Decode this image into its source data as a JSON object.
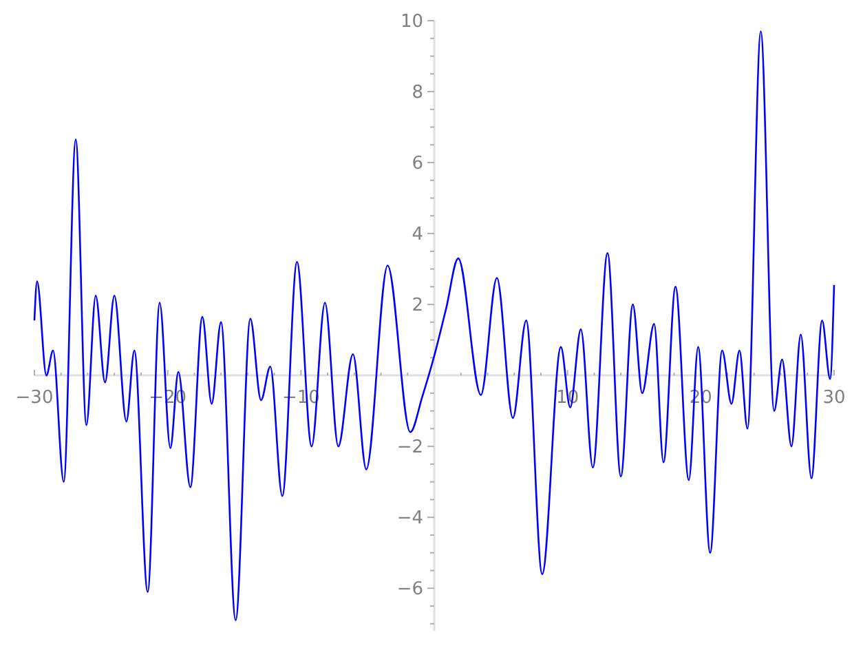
{
  "chart_data": {
    "type": "line",
    "x": [
      -30,
      -29.8,
      -29.1,
      -28.6,
      -27.8,
      -26.9,
      -26.1,
      -25.4,
      -24.7,
      -24.0,
      -23.1,
      -22.5,
      -21.5,
      -20.6,
      -19.8,
      -19.2,
      -18.3,
      -17.4,
      -16.7,
      -16.0,
      -14.9,
      -13.8,
      -13.0,
      -12.3,
      -11.4,
      -10.3,
      -9.2,
      -8.2,
      -7.2,
      -6.1,
      -5.1,
      -3.5,
      -1.8,
      -0.9,
      0,
      0.9,
      1.8,
      3.5,
      4.7,
      5.9,
      6.9,
      8.1,
      9.5,
      10.2,
      11.0,
      11.9,
      13.0,
      14.0,
      14.9,
      15.6,
      16.5,
      17.2,
      18.1,
      19.1,
      19.8,
      20.7,
      21.6,
      22.3,
      22.9,
      23.5,
      24.5,
      25.5,
      26.1,
      26.8,
      27.5,
      28.3,
      29.1,
      29.7,
      30
    ],
    "series": [
      {
        "color": "#0000ff",
        "values": [
          1.55,
          2.65,
          0.0,
          0.7,
          -3.0,
          6.65,
          -1.4,
          2.25,
          -0.2,
          2.25,
          -1.3,
          0.7,
          -6.1,
          2.05,
          -2.05,
          0.1,
          -3.15,
          1.65,
          -0.8,
          1.5,
          -6.9,
          1.6,
          -0.7,
          0.25,
          -3.4,
          3.2,
          -2.0,
          2.05,
          -2.0,
          0.6,
          -2.65,
          3.1,
          -1.6,
          -0.6,
          0.55,
          1.9,
          3.3,
          -0.55,
          2.75,
          -1.2,
          1.55,
          -5.6,
          0.8,
          -0.9,
          1.3,
          -2.6,
          3.45,
          -2.85,
          2.0,
          -0.5,
          1.45,
          -2.45,
          2.5,
          -2.95,
          0.8,
          -5.0,
          0.7,
          -0.8,
          0.7,
          -1.5,
          9.7,
          -1.0,
          0.45,
          -2.0,
          1.15,
          -2.9,
          1.55,
          -0.1,
          2.55
        ]
      }
    ],
    "xlim": [
      -30,
      30
    ],
    "ylim": [
      -7.2,
      10
    ],
    "xticks": [
      {
        "value": -30,
        "label": "−30"
      },
      {
        "value": -28,
        "label": null
      },
      {
        "value": -26,
        "label": null
      },
      {
        "value": -24,
        "label": null
      },
      {
        "value": -22,
        "label": null
      },
      {
        "value": -20,
        "label": "−20"
      },
      {
        "value": -18,
        "label": null
      },
      {
        "value": -16,
        "label": null
      },
      {
        "value": -14,
        "label": null
      },
      {
        "value": -12,
        "label": null
      },
      {
        "value": -10,
        "label": "−10"
      },
      {
        "value": -8,
        "label": null
      },
      {
        "value": -6,
        "label": null
      },
      {
        "value": -4,
        "label": null
      },
      {
        "value": -2,
        "label": null
      },
      {
        "value": 2,
        "label": null
      },
      {
        "value": 4,
        "label": null
      },
      {
        "value": 6,
        "label": null
      },
      {
        "value": 8,
        "label": null
      },
      {
        "value": 10,
        "label": "10"
      },
      {
        "value": 12,
        "label": null
      },
      {
        "value": 14,
        "label": null
      },
      {
        "value": 16,
        "label": null
      },
      {
        "value": 18,
        "label": null
      },
      {
        "value": 20,
        "label": "20"
      },
      {
        "value": 22,
        "label": null
      },
      {
        "value": 24,
        "label": null
      },
      {
        "value": 26,
        "label": null
      },
      {
        "value": 28,
        "label": null
      },
      {
        "value": 30,
        "label": "30"
      }
    ],
    "yticks": [
      {
        "value": -7,
        "label": null
      },
      {
        "value": -6.5,
        "label": null
      },
      {
        "value": -6,
        "label": "−6"
      },
      {
        "value": -5.5,
        "label": null
      },
      {
        "value": -5,
        "label": null
      },
      {
        "value": -4.5,
        "label": null
      },
      {
        "value": -4,
        "label": "−4"
      },
      {
        "value": -3.5,
        "label": null
      },
      {
        "value": -3,
        "label": null
      },
      {
        "value": -2.5,
        "label": null
      },
      {
        "value": -2,
        "label": "−2"
      },
      {
        "value": -1.5,
        "label": null
      },
      {
        "value": -1,
        "label": null
      },
      {
        "value": -0.5,
        "label": null
      },
      {
        "value": 0.5,
        "label": null
      },
      {
        "value": 1,
        "label": null
      },
      {
        "value": 1.5,
        "label": null
      },
      {
        "value": 2,
        "label": "2"
      },
      {
        "value": 2.5,
        "label": null
      },
      {
        "value": 3,
        "label": null
      },
      {
        "value": 3.5,
        "label": null
      },
      {
        "value": 4,
        "label": "4"
      },
      {
        "value": 4.5,
        "label": null
      },
      {
        "value": 5,
        "label": null
      },
      {
        "value": 5.5,
        "label": null
      },
      {
        "value": 6,
        "label": "6"
      },
      {
        "value": 6.5,
        "label": null
      },
      {
        "value": 7,
        "label": null
      },
      {
        "value": 7.5,
        "label": null
      },
      {
        "value": 8,
        "label": "8"
      },
      {
        "value": 8.5,
        "label": null
      },
      {
        "value": 9,
        "label": null
      },
      {
        "value": 9.5,
        "label": null
      },
      {
        "value": 10,
        "label": "10"
      }
    ]
  }
}
